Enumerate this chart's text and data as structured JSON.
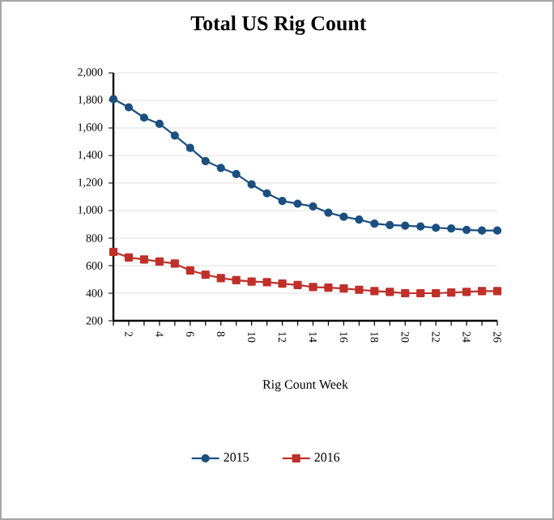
{
  "chart_data": {
    "type": "line",
    "title": "Total US Rig Count",
    "xlabel": "Rig Count Week",
    "x": [
      1,
      2,
      3,
      4,
      5,
      6,
      7,
      8,
      9,
      10,
      11,
      12,
      13,
      14,
      15,
      16,
      17,
      18,
      19,
      20,
      21,
      22,
      23,
      24,
      25,
      26
    ],
    "series": [
      {
        "name": "2015",
        "color": "#1a4f80",
        "marker": "circle",
        "values": [
          1810,
          1750,
          1675,
          1630,
          1545,
          1455,
          1360,
          1310,
          1265,
          1190,
          1125,
          1070,
          1050,
          1030,
          985,
          955,
          935,
          905,
          895,
          890,
          885,
          875,
          870,
          860,
          855,
          855
        ]
      },
      {
        "name": "2016",
        "color": "#c0302a",
        "marker": "square",
        "values": [
          700,
          660,
          645,
          630,
          615,
          565,
          535,
          510,
          495,
          485,
          480,
          470,
          460,
          445,
          440,
          435,
          425,
          415,
          410,
          400,
          400,
          400,
          405,
          410,
          415,
          415
        ]
      }
    ],
    "xlim": [
      1,
      26
    ],
    "xticks": [
      {
        "value": 1,
        "label": null
      },
      2,
      {
        "value": 3,
        "label": null
      },
      4,
      {
        "value": 5,
        "label": null
      },
      6,
      {
        "value": 7,
        "label": null
      },
      8,
      {
        "value": 9,
        "label": null
      },
      10,
      {
        "value": 11,
        "label": null
      },
      12,
      {
        "value": 13,
        "label": null
      },
      14,
      {
        "value": 15,
        "label": null
      },
      16,
      {
        "value": 17,
        "label": null
      },
      18,
      {
        "value": 19,
        "label": null
      },
      20,
      {
        "value": 21,
        "label": null
      },
      22,
      {
        "value": 23,
        "label": null
      },
      24,
      {
        "value": 25,
        "label": null
      },
      26
    ],
    "ylim": [
      200,
      2000
    ],
    "yticks": [
      {
        "value": 200,
        "label": "200"
      },
      {
        "value": 400,
        "label": "400"
      },
      {
        "value": 600,
        "label": "600"
      },
      {
        "value": 800,
        "label": "800"
      },
      {
        "value": 1000,
        "label": "1,000"
      },
      {
        "value": 1200,
        "label": "1,200"
      },
      {
        "value": 1400,
        "label": "1,400"
      },
      {
        "value": 1600,
        "label": "1,600"
      },
      {
        "value": 1800,
        "label": "1,800"
      },
      {
        "value": 2000,
        "label": "2,000"
      }
    ],
    "grid": "y",
    "legend": "bottom",
    "line_style": "solid"
  }
}
